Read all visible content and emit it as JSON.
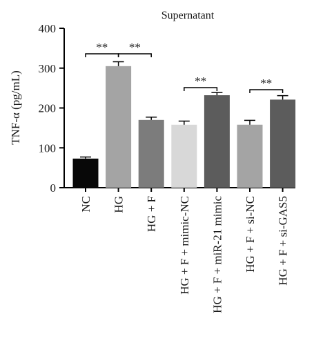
{
  "chart_data": {
    "type": "bar",
    "title": "Supernatant",
    "ylabel": "TNF-α (pg/mL)",
    "xlabel": "",
    "ylim": [
      0,
      400
    ],
    "yticks": [
      0,
      100,
      200,
      300,
      400
    ],
    "grid": false,
    "categories": [
      "NC",
      "HG",
      "HG + F",
      "HG + F + mimic-NC",
      "HG + F + miR-21 mimic",
      "HG + F + si-NC",
      "HG + F + si-GAS5"
    ],
    "values": [
      73,
      305,
      170,
      158,
      232,
      158,
      221
    ],
    "errors": [
      4,
      11,
      7,
      9,
      7,
      11,
      10
    ],
    "bar_colors": [
      "#080808",
      "#a4a4a4",
      "#7c7c7c",
      "#d8d8d8",
      "#5c5c5c",
      "#a4a4a4",
      "#5c5c5c"
    ],
    "annotations": [
      {
        "from": "NC",
        "to": "HG",
        "text": "**"
      },
      {
        "from": "HG",
        "to": "HG + F",
        "text": "**"
      },
      {
        "from": "HG + F + mimic-NC",
        "to": "HG + F + miR-21 mimic",
        "text": "**"
      },
      {
        "from": "HG + F + si-NC",
        "to": "HG + F + si-GAS5",
        "text": "**"
      }
    ]
  }
}
